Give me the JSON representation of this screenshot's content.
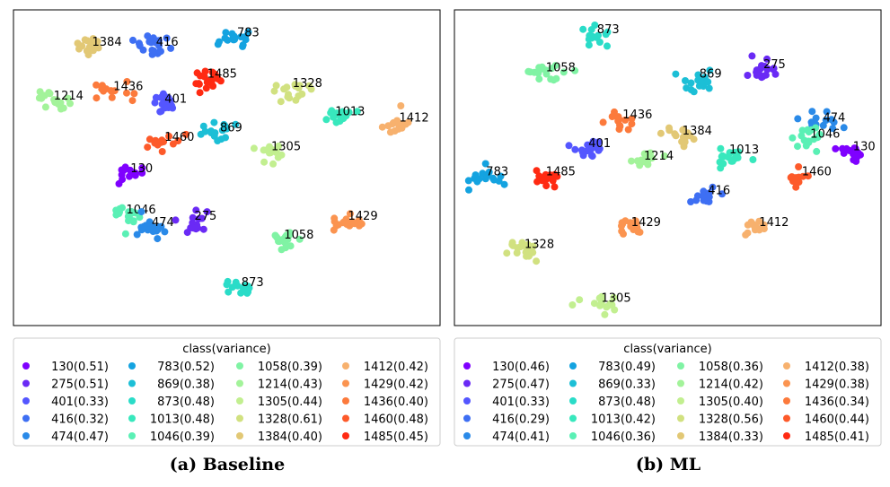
{
  "colors": {
    "130": "#7f00ff",
    "275": "#6a2af5",
    "401": "#5456ff",
    "416": "#3e6ff3",
    "474": "#2a8ae8",
    "783": "#14a3e0",
    "869": "#1cbfd6",
    "873": "#2adcc8",
    "1013": "#38e8bd",
    "1046": "#5af0b5",
    "1058": "#80f3a4",
    "1214": "#a3f39a",
    "1305": "#c2ef90",
    "1328": "#d1e180",
    "1384": "#e2c875",
    "1412": "#f7b16e",
    "1429": "#fb9450",
    "1436": "#fc7a3c",
    "1460": "#fd5a2a",
    "1485": "#ff2a12"
  },
  "chart_data": [
    {
      "type": "scatter",
      "caption": "(a) Baseline",
      "legend_title": "class(variance)",
      "legend": [
        {
          "cls": "130",
          "label": "130(0.51)"
        },
        {
          "cls": "275",
          "label": "275(0.51)"
        },
        {
          "cls": "401",
          "label": "401(0.33)"
        },
        {
          "cls": "416",
          "label": "416(0.32)"
        },
        {
          "cls": "474",
          "label": "474(0.47)"
        },
        {
          "cls": "783",
          "label": "783(0.52)"
        },
        {
          "cls": "869",
          "label": "869(0.38)"
        },
        {
          "cls": "873",
          "label": "873(0.48)"
        },
        {
          "cls": "1013",
          "label": "1013(0.48)"
        },
        {
          "cls": "1046",
          "label": "1046(0.39)"
        },
        {
          "cls": "1058",
          "label": "1058(0.39)"
        },
        {
          "cls": "1214",
          "label": "1214(0.43)"
        },
        {
          "cls": "1305",
          "label": "1305(0.44)"
        },
        {
          "cls": "1328",
          "label": "1328(0.61)"
        },
        {
          "cls": "1384",
          "label": "1384(0.40)"
        },
        {
          "cls": "1412",
          "label": "1412(0.42)"
        },
        {
          "cls": "1429",
          "label": "1429(0.42)"
        },
        {
          "cls": "1436",
          "label": "1436(0.40)"
        },
        {
          "cls": "1460",
          "label": "1460(0.48)"
        },
        {
          "cls": "1485",
          "label": "1485(0.45)"
        }
      ],
      "clusters": [
        {
          "cls": "1384",
          "x": 0.18,
          "y": 0.88,
          "label": "1384"
        },
        {
          "cls": "416",
          "x": 0.33,
          "y": 0.88,
          "label": "416"
        },
        {
          "cls": "783",
          "x": 0.52,
          "y": 0.91,
          "label": "783"
        },
        {
          "cls": "1485",
          "x": 0.45,
          "y": 0.78,
          "label": "1485"
        },
        {
          "cls": "1328",
          "x": 0.65,
          "y": 0.75,
          "label": "1328"
        },
        {
          "cls": "1214",
          "x": 0.09,
          "y": 0.71,
          "label": "1214"
        },
        {
          "cls": "1436",
          "x": 0.23,
          "y": 0.74,
          "label": "1436"
        },
        {
          "cls": "401",
          "x": 0.35,
          "y": 0.7,
          "label": "401"
        },
        {
          "cls": "1013",
          "x": 0.75,
          "y": 0.66,
          "label": "1013"
        },
        {
          "cls": "1412",
          "x": 0.9,
          "y": 0.64,
          "label": "1412"
        },
        {
          "cls": "869",
          "x": 0.48,
          "y": 0.61,
          "label": "869"
        },
        {
          "cls": "1460",
          "x": 0.35,
          "y": 0.58,
          "label": "1460"
        },
        {
          "cls": "1305",
          "x": 0.6,
          "y": 0.55,
          "label": "1305"
        },
        {
          "cls": "130",
          "x": 0.27,
          "y": 0.48,
          "label": "130"
        },
        {
          "cls": "1046",
          "x": 0.26,
          "y": 0.35,
          "label": "1046"
        },
        {
          "cls": "474",
          "x": 0.32,
          "y": 0.31,
          "label": "474"
        },
        {
          "cls": "275",
          "x": 0.42,
          "y": 0.33,
          "label": "275"
        },
        {
          "cls": "1429",
          "x": 0.78,
          "y": 0.33,
          "label": "1429"
        },
        {
          "cls": "1058",
          "x": 0.63,
          "y": 0.27,
          "label": "1058"
        },
        {
          "cls": "873",
          "x": 0.53,
          "y": 0.12,
          "label": "873"
        }
      ]
    },
    {
      "type": "scatter",
      "caption": "(b) ML",
      "legend_title": "class(variance)",
      "legend": [
        {
          "cls": "130",
          "label": "130(0.46)"
        },
        {
          "cls": "275",
          "label": "275(0.47)"
        },
        {
          "cls": "401",
          "label": "401(0.33)"
        },
        {
          "cls": "416",
          "label": "416(0.29)"
        },
        {
          "cls": "474",
          "label": "474(0.41)"
        },
        {
          "cls": "783",
          "label": "783(0.49)"
        },
        {
          "cls": "869",
          "label": "869(0.33)"
        },
        {
          "cls": "873",
          "label": "873(0.48)"
        },
        {
          "cls": "1013",
          "label": "1013(0.42)"
        },
        {
          "cls": "1046",
          "label": "1046(0.36)"
        },
        {
          "cls": "1058",
          "label": "1058(0.36)"
        },
        {
          "cls": "1214",
          "label": "1214(0.42)"
        },
        {
          "cls": "1305",
          "label": "1305(0.40)"
        },
        {
          "cls": "1328",
          "label": "1328(0.56)"
        },
        {
          "cls": "1384",
          "label": "1384(0.33)"
        },
        {
          "cls": "1412",
          "label": "1412(0.38)"
        },
        {
          "cls": "1429",
          "label": "1429(0.38)"
        },
        {
          "cls": "1436",
          "label": "1436(0.34)"
        },
        {
          "cls": "1460",
          "label": "1460(0.44)"
        },
        {
          "cls": "1485",
          "label": "1485(0.41)"
        }
      ],
      "clusters": [
        {
          "cls": "873",
          "x": 0.33,
          "y": 0.92,
          "label": "873"
        },
        {
          "cls": "1058",
          "x": 0.21,
          "y": 0.8,
          "label": "1058"
        },
        {
          "cls": "275",
          "x": 0.72,
          "y": 0.81,
          "label": "275"
        },
        {
          "cls": "869",
          "x": 0.57,
          "y": 0.78,
          "label": "869"
        },
        {
          "cls": "1436",
          "x": 0.39,
          "y": 0.65,
          "label": "1436"
        },
        {
          "cls": "474",
          "x": 0.86,
          "y": 0.64,
          "label": "474"
        },
        {
          "cls": "1384",
          "x": 0.53,
          "y": 0.6,
          "label": "1384"
        },
        {
          "cls": "1046",
          "x": 0.83,
          "y": 0.59,
          "label": "1046"
        },
        {
          "cls": "130",
          "x": 0.93,
          "y": 0.55,
          "label": "130"
        },
        {
          "cls": "401",
          "x": 0.31,
          "y": 0.56,
          "label": "401"
        },
        {
          "cls": "1214",
          "x": 0.44,
          "y": 0.52,
          "label": "1214"
        },
        {
          "cls": "1013",
          "x": 0.64,
          "y": 0.54,
          "label": "1013"
        },
        {
          "cls": "783",
          "x": 0.07,
          "y": 0.47,
          "label": "783"
        },
        {
          "cls": "1485",
          "x": 0.21,
          "y": 0.47,
          "label": "1485"
        },
        {
          "cls": "1460",
          "x": 0.81,
          "y": 0.47,
          "label": "1460"
        },
        {
          "cls": "416",
          "x": 0.59,
          "y": 0.41,
          "label": "416"
        },
        {
          "cls": "1429",
          "x": 0.41,
          "y": 0.31,
          "label": "1429"
        },
        {
          "cls": "1412",
          "x": 0.71,
          "y": 0.31,
          "label": "1412"
        },
        {
          "cls": "1328",
          "x": 0.16,
          "y": 0.24,
          "label": "1328"
        },
        {
          "cls": "1305",
          "x": 0.34,
          "y": 0.07,
          "label": "1305"
        }
      ]
    }
  ]
}
